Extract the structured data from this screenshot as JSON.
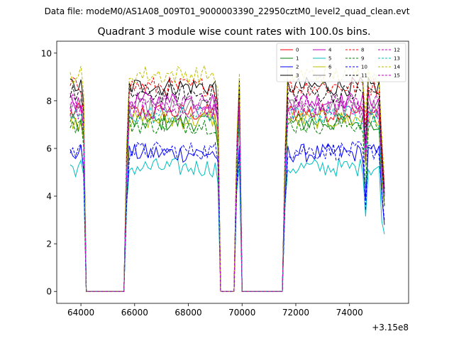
{
  "chart_data": {
    "type": "line",
    "suptitle": "Data file: modeM0/AS1A08_009T01_9000003390_22950cztM0_level2_quad_clean.evt",
    "title": "Quadrant 3 module wise count rates with 100.0s bins.",
    "xlabel": "",
    "ylabel": "",
    "x_offset_label": "+3.15e8",
    "xlim": [
      63100,
      76200
    ],
    "ylim": [
      -0.5,
      10.5
    ],
    "x_ticks": [
      64000,
      66000,
      68000,
      70000,
      72000,
      74000
    ],
    "y_ticks": [
      0,
      2,
      4,
      6,
      8,
      10
    ],
    "x_tick_labels": [
      "64000",
      "66000",
      "68000",
      "70000",
      "72000",
      "74000"
    ],
    "y_tick_labels": [
      "0",
      "2",
      "4",
      "6",
      "8",
      "10"
    ],
    "bin_size_s": 100,
    "legend_location": "upper right",
    "segments": [
      {
        "start": 63600,
        "end": 64100
      },
      {
        "start": 65700,
        "end": 69100
      },
      {
        "start": 69800,
        "end": 69900
      },
      {
        "start": 71600,
        "end": 75300
      }
    ],
    "series": [
      {
        "name": "0",
        "color": "#ff0000",
        "dash": "solid",
        "level": 7.5
      },
      {
        "name": "1",
        "color": "#008000",
        "dash": "solid",
        "level": 7.1
      },
      {
        "name": "2",
        "color": "#0000ff",
        "dash": "solid",
        "level": 5.8
      },
      {
        "name": "3",
        "color": "#000000",
        "dash": "solid",
        "level": 8.6
      },
      {
        "name": "4",
        "color": "#bf00bf",
        "dash": "solid",
        "level": 8.0
      },
      {
        "name": "5",
        "color": "#00bfbf",
        "dash": "solid",
        "level": 5.2
      },
      {
        "name": "6",
        "color": "#bfbf00",
        "dash": "solid",
        "level": 7.2
      },
      {
        "name": "7",
        "color": "#808080",
        "dash": "solid",
        "level": 7.7
      },
      {
        "name": "8",
        "color": "#ff0000",
        "dash": "dashed",
        "level": 8.6
      },
      {
        "name": "9",
        "color": "#008000",
        "dash": "dashed",
        "level": 7.0
      },
      {
        "name": "10",
        "color": "#0000ff",
        "dash": "dashed",
        "level": 5.9
      },
      {
        "name": "11",
        "color": "#000000",
        "dash": "dashed",
        "level": 8.3
      },
      {
        "name": "12",
        "color": "#bf00bf",
        "dash": "dashed",
        "level": 7.9
      },
      {
        "name": "13",
        "color": "#00bfbf",
        "dash": "dashed",
        "level": 7.4
      },
      {
        "name": "14",
        "color": "#bfbf00",
        "dash": "dashed",
        "level": 9.1
      },
      {
        "name": "15",
        "color": "#bf00bf",
        "dash": "dashed",
        "level": 7.6
      }
    ]
  }
}
